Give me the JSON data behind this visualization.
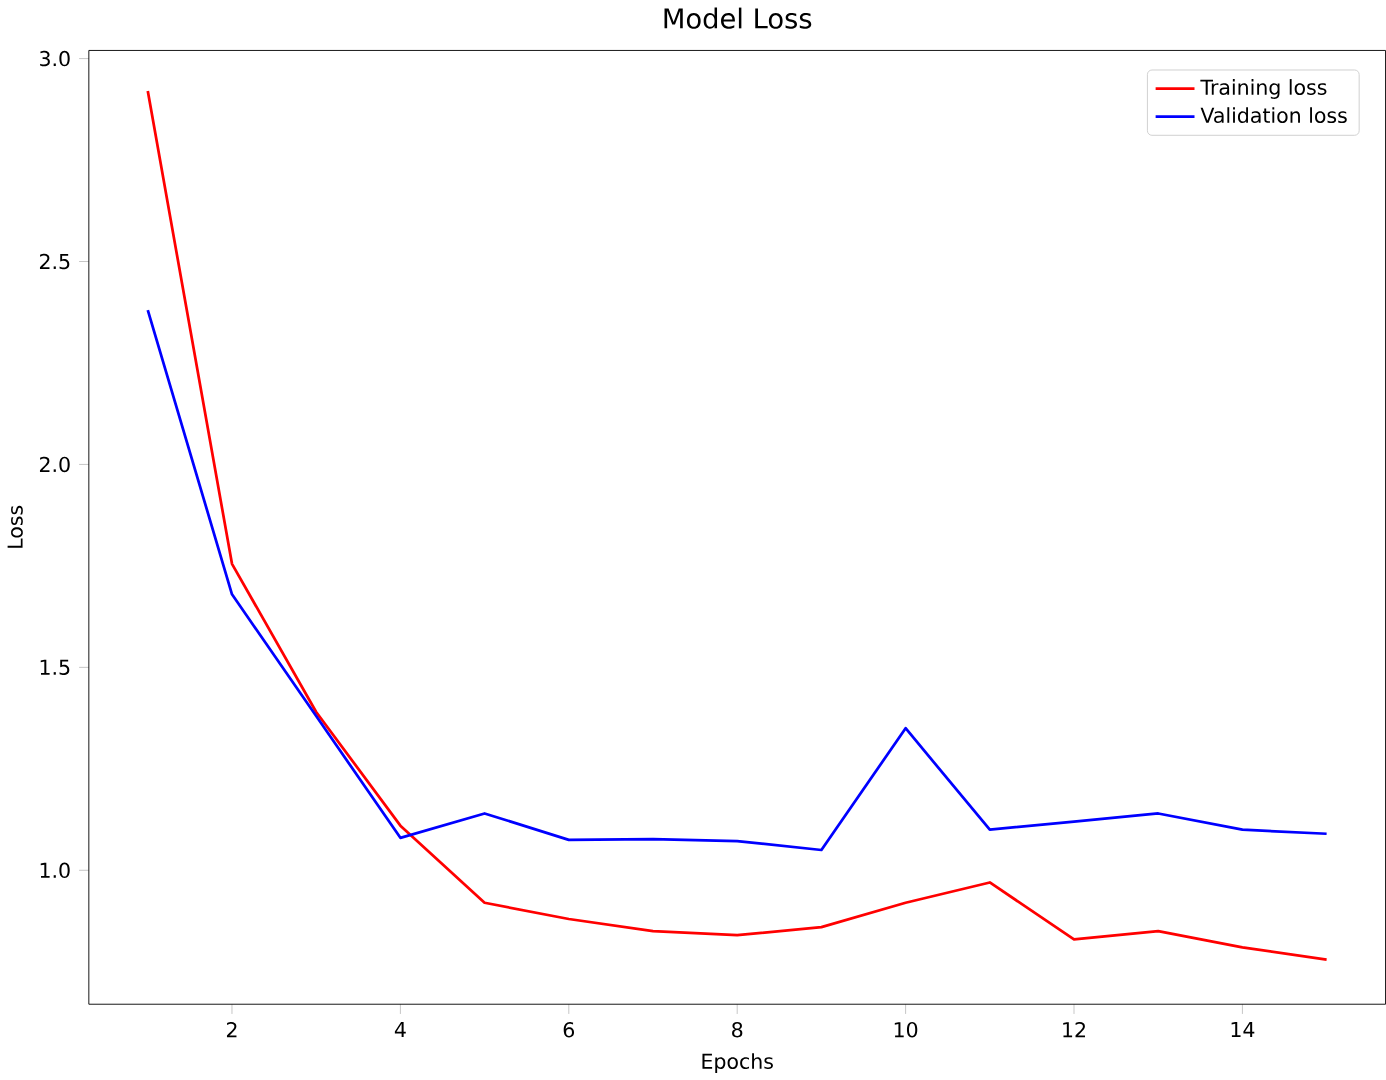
{
  "chart_data": {
    "type": "line",
    "title": "Model Loss",
    "xlabel": "Epochs",
    "ylabel": "Loss",
    "x": [
      1,
      2,
      3,
      4,
      5,
      6,
      7,
      8,
      9,
      10,
      11,
      12,
      13,
      14,
      15
    ],
    "series": [
      {
        "name": "Training loss",
        "color": "#ff0000",
        "values": [
          2.92,
          1.755,
          1.39,
          1.11,
          0.92,
          0.88,
          0.85,
          0.84,
          0.86,
          0.92,
          0.97,
          0.83,
          0.85,
          0.81,
          0.78
        ]
      },
      {
        "name": "Validation loss",
        "color": "#0000ff",
        "values": [
          2.38,
          1.68,
          1.38,
          1.08,
          1.14,
          1.075,
          1.077,
          1.072,
          1.05,
          1.35,
          1.1,
          1.12,
          1.14,
          1.1,
          1.09
        ]
      }
    ],
    "xlim": [
      0.3,
      15.7
    ],
    "ylim": [
      0.67,
      3.02
    ],
    "xticks": [
      2,
      4,
      6,
      8,
      10,
      12,
      14
    ],
    "yticks": [
      {
        "value": 1,
        "label": "1.0"
      },
      1.5,
      {
        "value": 2,
        "label": "2.0"
      },
      2.5,
      {
        "value": 3,
        "label": "3.0"
      }
    ],
    "grid": false,
    "legend": "top right",
    "marker": "none",
    "line_style": "solid"
  }
}
